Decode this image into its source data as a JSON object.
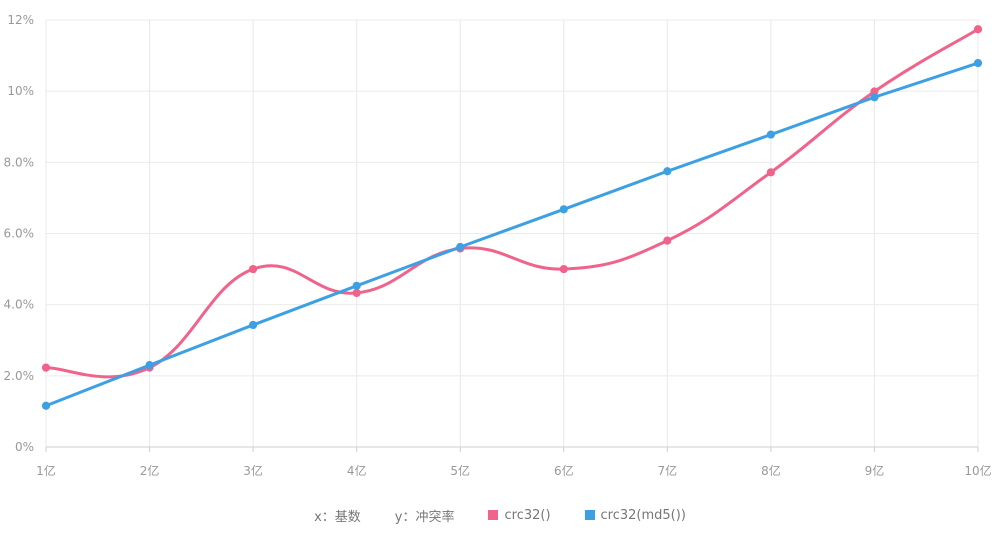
{
  "chart_data": {
    "type": "line",
    "title": "",
    "categories": [
      "1亿",
      "2亿",
      "3亿",
      "4亿",
      "5亿",
      "6亿",
      "7亿",
      "8亿",
      "9亿",
      "10亿"
    ],
    "y_ticks": [
      "0%",
      "2.0%",
      "4.0%",
      "6.0%",
      "8.0%",
      "10%",
      "12%"
    ],
    "ylim": [
      0,
      12
    ],
    "y_unit": "%",
    "grid": true,
    "legend_position": "bottom",
    "axis_notes": {
      "x": "x：基数",
      "y": "y：冲突率"
    },
    "series": [
      {
        "name": "crc32()",
        "color": "#f0638a",
        "smooth": true,
        "values": [
          2.23,
          2.23,
          5.0,
          4.33,
          5.58,
          5.0,
          5.8,
          7.72,
          9.99,
          11.74
        ]
      },
      {
        "name": "crc32(md5())",
        "color": "#3da0e3",
        "smooth": false,
        "values": [
          1.16,
          2.3,
          3.43,
          4.53,
          5.62,
          6.68,
          7.75,
          8.78,
          9.83,
          10.79
        ]
      }
    ]
  }
}
